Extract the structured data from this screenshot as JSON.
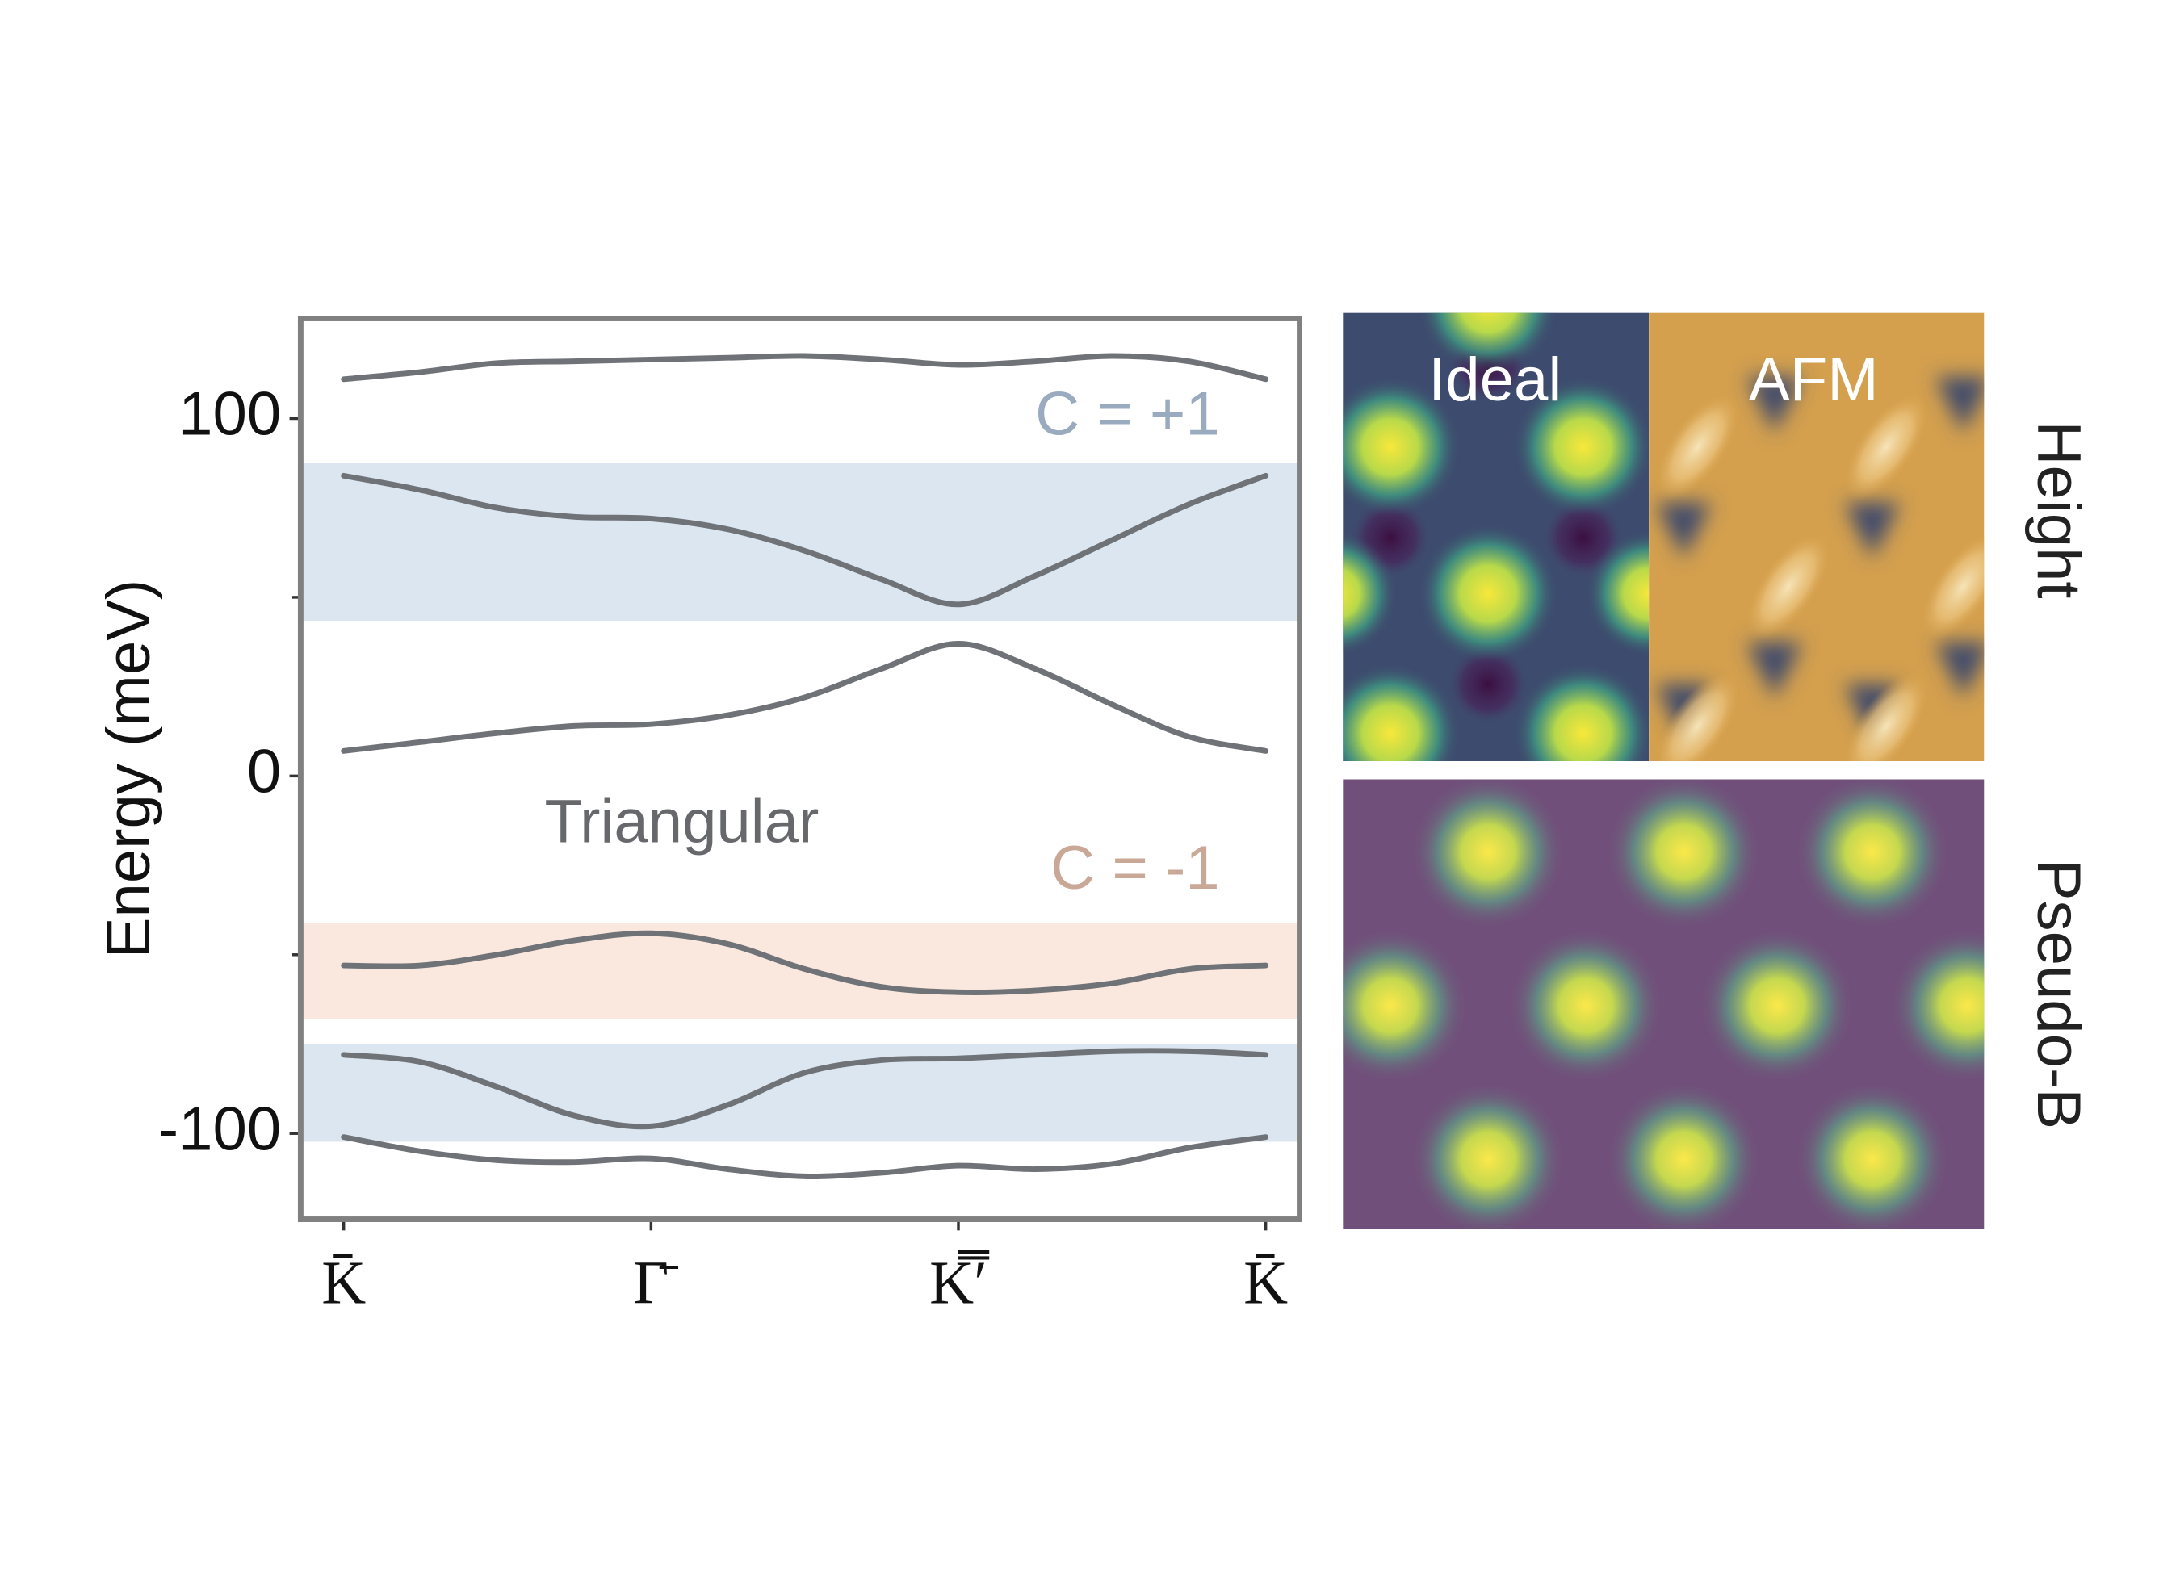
{
  "chart_data": {
    "type": "line",
    "y_label": "Energy (meV)",
    "x": [
      0,
      0.25,
      0.5,
      0.75,
      1,
      1.25,
      1.5,
      1.75,
      2,
      2.25,
      2.5,
      2.75,
      3
    ],
    "xlim": [
      -0.14,
      3.11
    ],
    "xticks": [
      {
        "value": 0,
        "label": "K̄"
      },
      {
        "value": 1,
        "label": "Γ̄"
      },
      {
        "value": 2,
        "label": "K̿′"
      },
      {
        "value": 3,
        "label": "K̄"
      }
    ],
    "ylim": [
      -124,
      128
    ],
    "yticks": [
      -100,
      0,
      100
    ],
    "y_minor_ticks": [
      -50,
      50
    ],
    "color": "#6f7378",
    "series": [
      {
        "values": [
          111,
          113,
          115.5,
          116,
          116.5,
          117,
          117.5,
          116.5,
          115,
          116,
          117.5,
          116,
          111
        ]
      },
      {
        "values": [
          84,
          80,
          75,
          72.5,
          72,
          69,
          63,
          55,
          48,
          56,
          66,
          76,
          84
        ]
      },
      {
        "values": [
          7,
          9.5,
          12,
          14,
          14.5,
          17,
          22,
          30,
          37,
          30,
          20,
          11,
          7
        ]
      },
      {
        "values": [
          -53,
          -53,
          -50,
          -46,
          -44,
          -47,
          -54,
          -59,
          -60.5,
          -60,
          -58,
          -54,
          -53
        ]
      },
      {
        "values": [
          -78,
          -80,
          -87,
          -95,
          -98,
          -92,
          -83,
          -79.5,
          -79,
          -78,
          -77,
          -77,
          -78
        ]
      },
      {
        "values": [
          -101,
          -105,
          -107.5,
          -108,
          -107,
          -110,
          -112,
          -111,
          -109,
          -110,
          -108.5,
          -104,
          -101
        ]
      }
    ],
    "regions": [
      {
        "ymin": 43.4,
        "ymax": 87.5,
        "color": "#dce6f0"
      },
      {
        "ymin": -68,
        "ymax": -41,
        "color": "#fae8df"
      },
      {
        "ymin": -102.3,
        "ymax": -75,
        "color": "#dce6f0"
      }
    ],
    "annotations": [
      {
        "text": "C = +1",
        "color": "#9aaabf"
      },
      {
        "text": "C = -1",
        "color": "#c9a898"
      },
      {
        "text": "Triangular",
        "color": "#66686b"
      }
    ]
  },
  "panels": {
    "top_left": "Ideal",
    "top_right": "AFM",
    "top_row": "Height",
    "bottom_row": "Pseudo-B"
  }
}
